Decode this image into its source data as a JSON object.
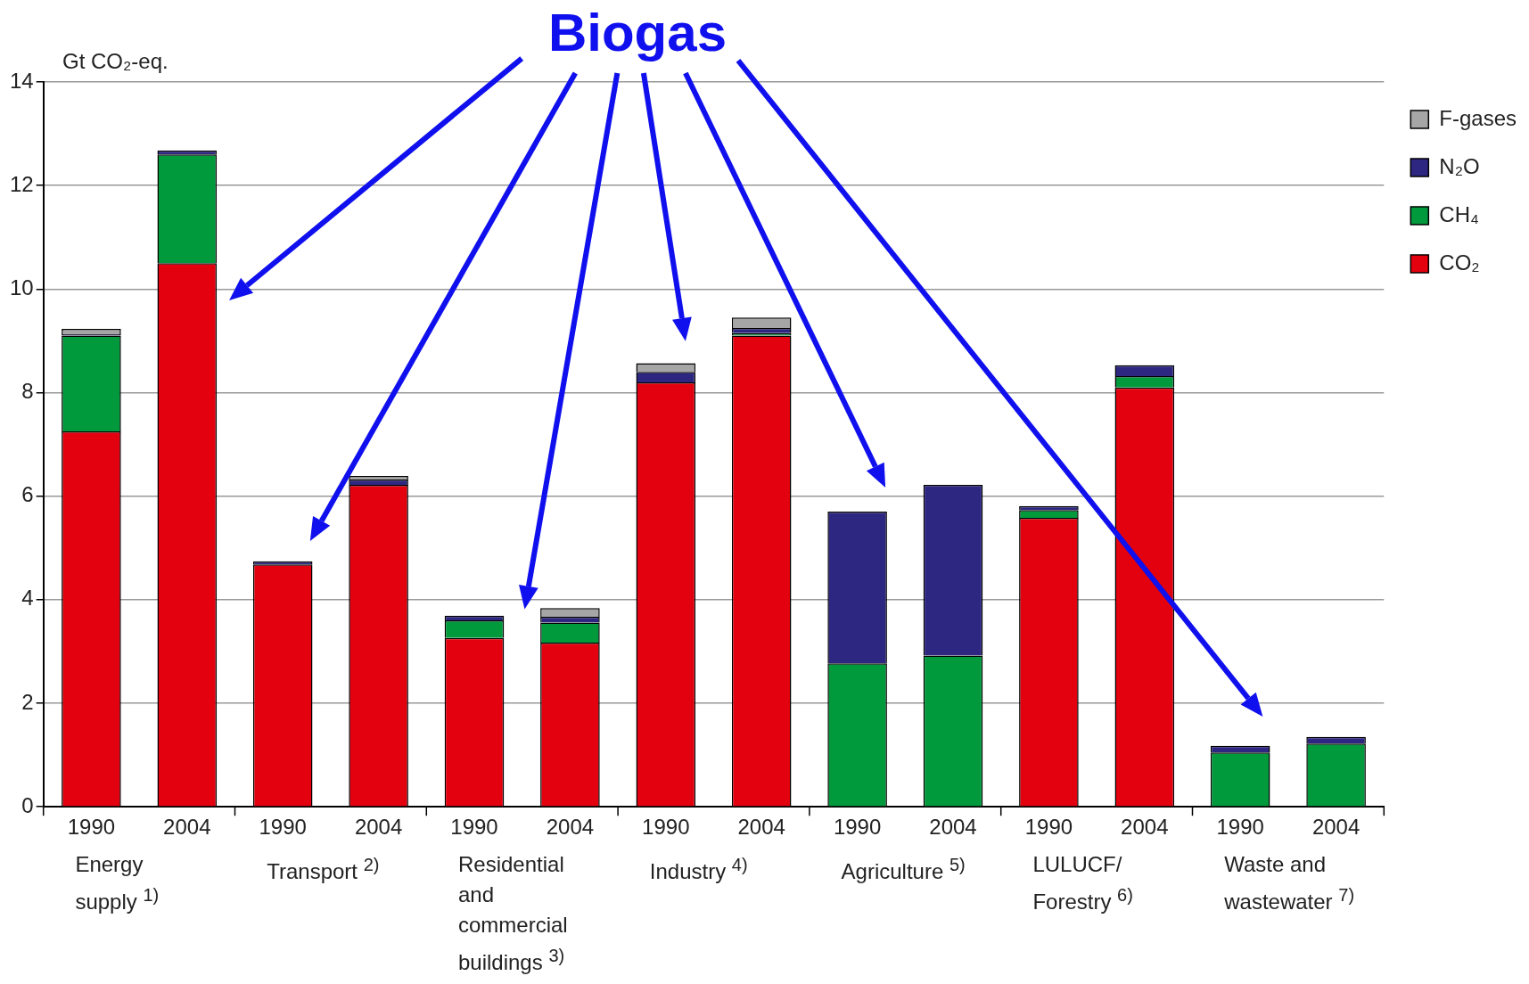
{
  "chart_data": {
    "type": "bar",
    "title": "Biogas",
    "ylabel": "Gt CO₂-eq.",
    "categories": [
      "1990",
      "2004",
      "1990",
      "2004",
      "1990",
      "2004",
      "1990",
      "2004",
      "1990",
      "2004",
      "1990",
      "2004",
      "1990",
      "2004"
    ],
    "series": [
      {
        "name": "CO₂",
        "color": "#e3000f",
        "values": [
          7.25,
          10.5,
          4.68,
          6.22,
          3.26,
          3.17,
          8.2,
          9.1,
          0,
          0,
          5.58,
          8.1,
          0,
          0
        ]
      },
      {
        "name": "CH₄",
        "color": "#009a3d",
        "values": [
          1.85,
          2.1,
          0,
          0,
          0.34,
          0.39,
          0,
          0.05,
          2.77,
          2.92,
          0.15,
          0.22,
          1.05,
          1.22
        ]
      },
      {
        "name": "N₂O",
        "color": "#2e2782",
        "values": [
          0.03,
          0.08,
          0.06,
          0.1,
          0.09,
          0.11,
          0.2,
          0.1,
          2.93,
          3.3,
          0.08,
          0.21,
          0.13,
          0.13
        ]
      },
      {
        "name": "F-gases",
        "color": "#a6a6a6",
        "values": [
          0.1,
          null,
          0,
          0.07,
          0,
          0.17,
          0.17,
          0.2,
          0,
          0,
          0,
          0,
          0,
          0
        ]
      }
    ],
    "stacked": true,
    "ylim": [
      0,
      14
    ],
    "yticks": [
      0,
      2,
      4,
      6,
      8,
      10,
      12,
      14
    ],
    "grid": "y",
    "legend": "top right",
    "annotations": [
      "Energy supply $^{1)}$",
      "Transport $^{2)}$",
      "Residential and commercial buildings $^{3)}$",
      "Industry $^{4)}$",
      "Agriculture $^{5)}$",
      "LULUCF/ Forestry $^{6)}$",
      "Waste and wastewater $^{7)}$"
    ]
  }
}
